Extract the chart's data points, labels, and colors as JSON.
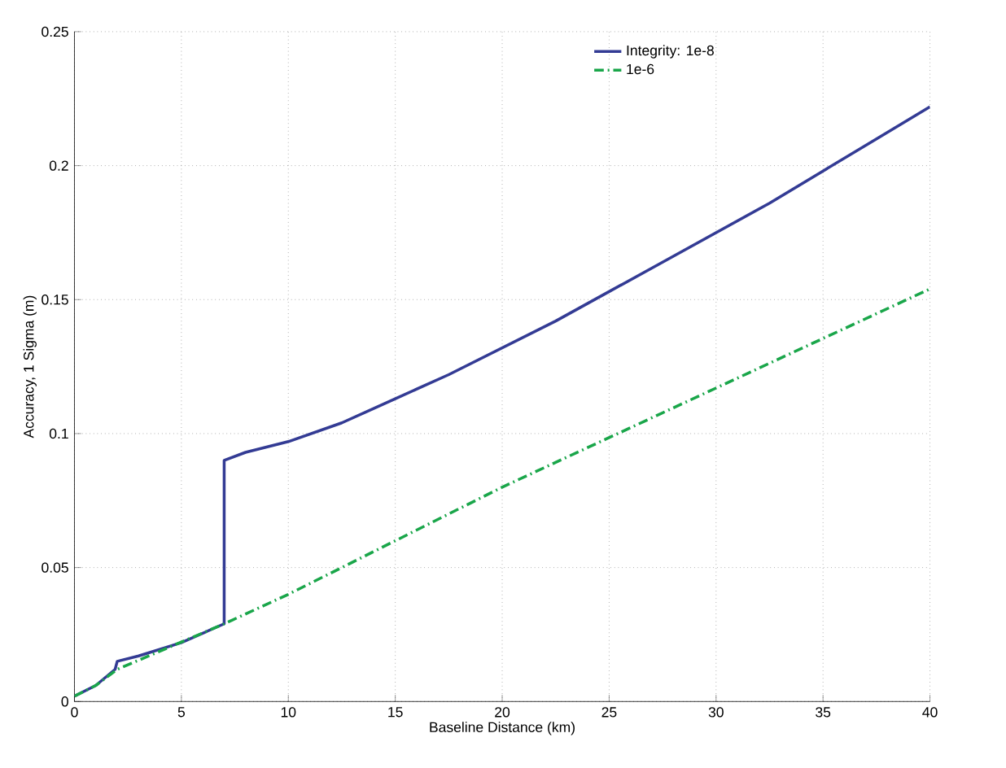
{
  "chart_data": {
    "type": "line",
    "xlabel": "Baseline Distance (km)",
    "ylabel": "Accuracy, 1 Sigma (m)",
    "xlim": [
      0,
      40
    ],
    "ylim": [
      0,
      0.25
    ],
    "xticks": [
      0,
      5,
      10,
      15,
      20,
      25,
      30,
      35,
      40
    ],
    "yticks": [
      0,
      0.05,
      0.1,
      0.15,
      0.2,
      0.25
    ],
    "grid": true,
    "legend": "top right",
    "marker": "none",
    "series": [
      {
        "name": "Integrity: 1e-8",
        "color": "#333b94",
        "line_style": "solid",
        "x": [
          0,
          1,
          1.9,
          2,
          3,
          5,
          7,
          7,
          8,
          10,
          12.5,
          15,
          17.5,
          20,
          22.5,
          25,
          27.5,
          30,
          32.5,
          35,
          37.5,
          40
        ],
        "values": [
          0.002,
          0.006,
          0.012,
          0.015,
          0.017,
          0.022,
          0.029,
          0.09,
          0.093,
          0.097,
          0.104,
          0.113,
          0.122,
          0.132,
          0.142,
          0.153,
          0.164,
          0.175,
          0.186,
          0.198,
          0.21,
          0.222
        ]
      },
      {
        "name": "1e-6",
        "color": "#1aa64a",
        "line_style": "dashdot",
        "x": [
          0,
          1,
          2,
          7,
          10,
          20,
          30,
          40
        ],
        "values": [
          0.002,
          0.006,
          0.012,
          0.029,
          0.04,
          0.08,
          0.117,
          0.154
        ]
      }
    ]
  }
}
